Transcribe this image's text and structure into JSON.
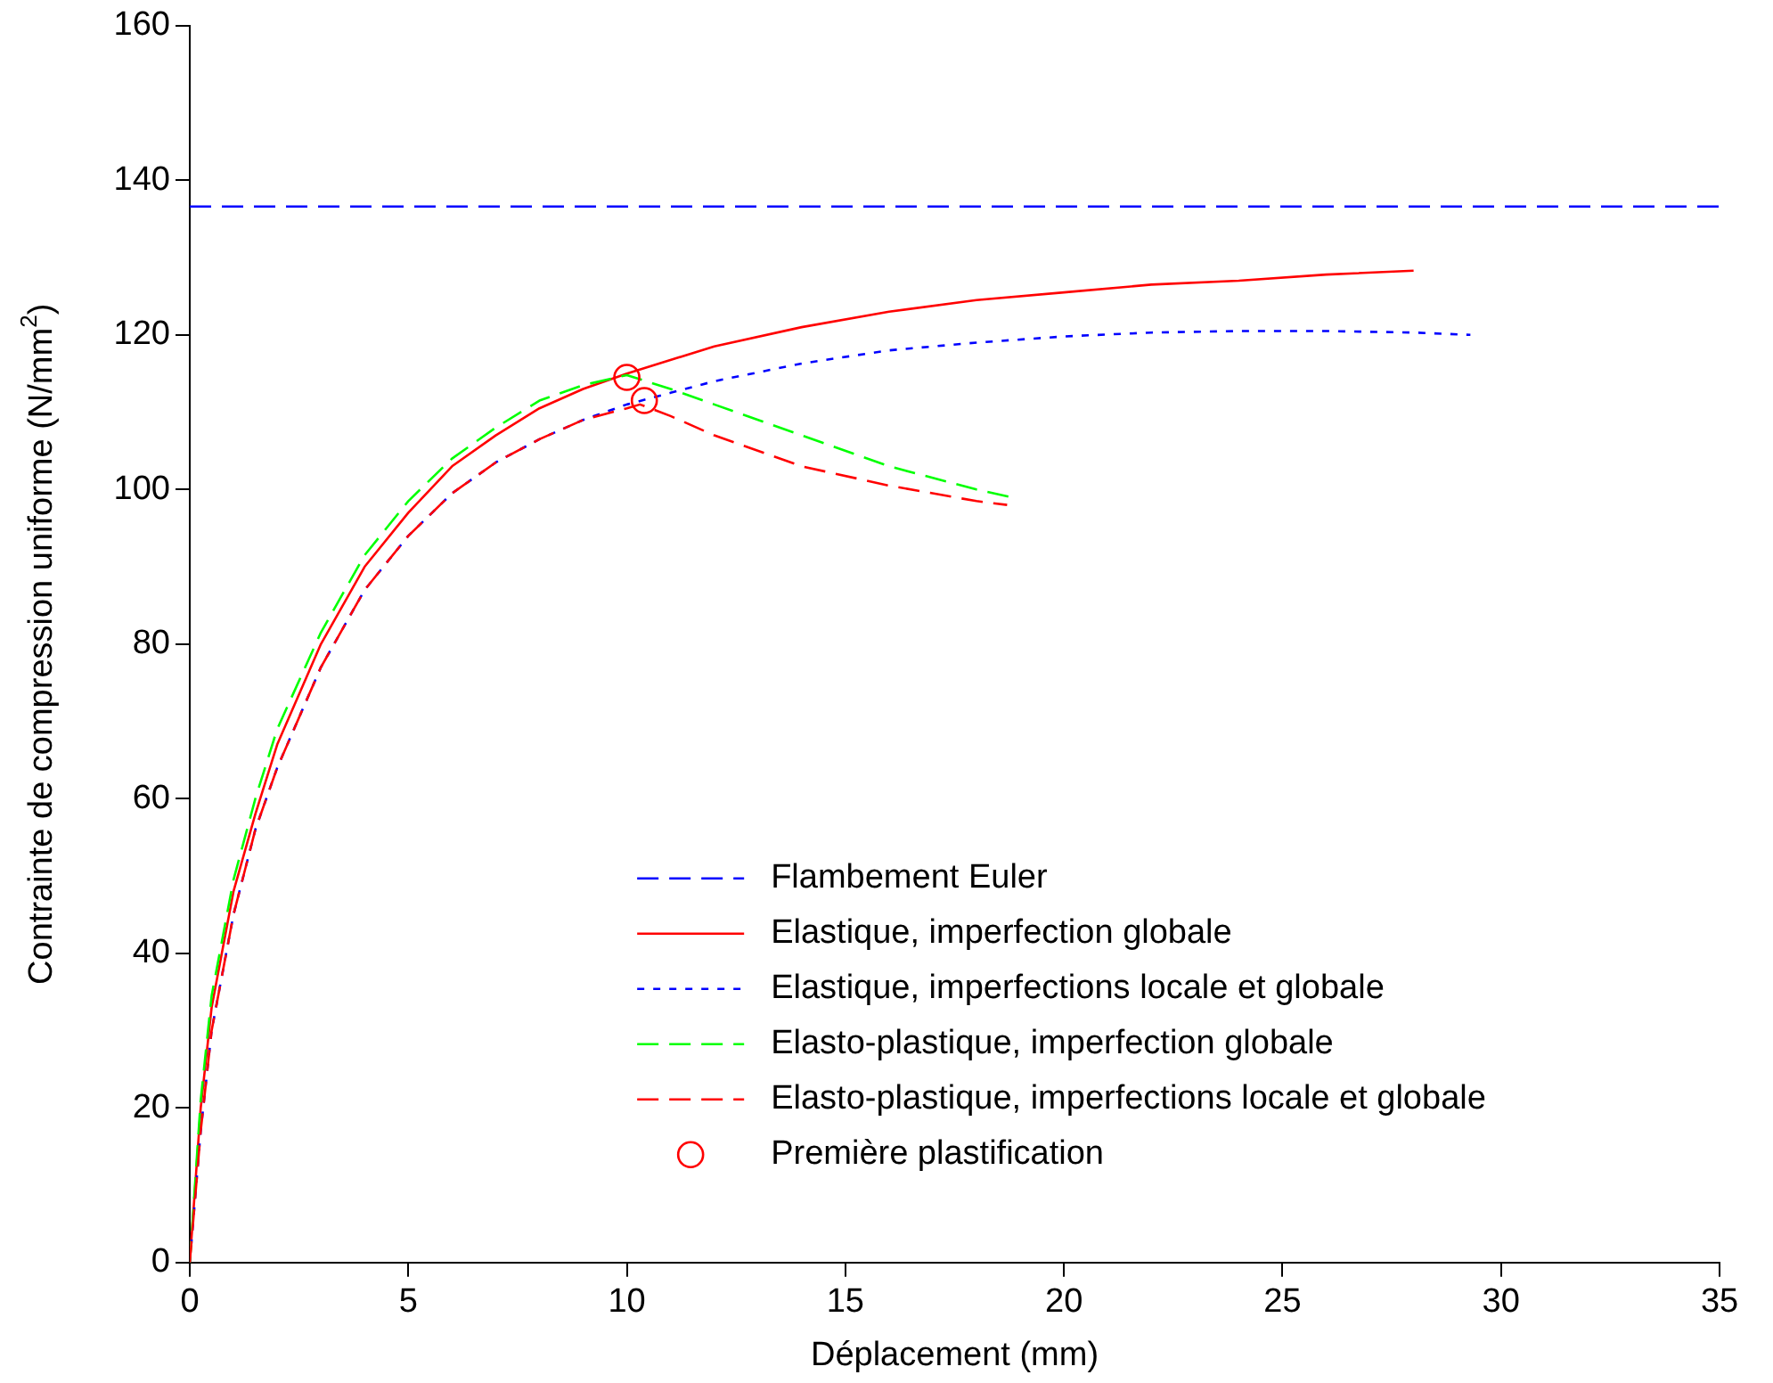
{
  "chart_data": {
    "type": "line",
    "xlabel": "Déplacement (mm)",
    "ylabel": "Contrainte de compression uniforme (N/mm$^{2}$)",
    "xlim": [
      0,
      35
    ],
    "ylim": [
      0,
      160
    ],
    "xticks": [
      0,
      5,
      10,
      15,
      20,
      25,
      30,
      35
    ],
    "yticks": [
      0,
      20,
      40,
      60,
      80,
      100,
      120,
      140,
      160
    ],
    "grid": false,
    "legend": "bottom",
    "marker": "none",
    "series": [
      {
        "name": "Flambement Euler",
        "color": "#0000ff",
        "line_style": "dashed",
        "x": [
          0,
          35
        ],
        "values": [
          136.6,
          136.6
        ]
      },
      {
        "name": "Elastique, imperfection globale",
        "color": "#ff0000",
        "line_style": "solid",
        "x": [
          0,
          0.25,
          0.5,
          1,
          1.5,
          2,
          3,
          4,
          5,
          6,
          7,
          8,
          9,
          10,
          12,
          14,
          16,
          18,
          20,
          22,
          24,
          26,
          28
        ],
        "values": [
          0,
          20,
          33,
          48,
          58,
          67,
          80,
          90,
          97,
          103,
          107,
          110.5,
          113,
          115,
          118.5,
          121,
          123,
          124.5,
          125.5,
          126.5,
          127,
          127.8,
          128.3
        ]
      },
      {
        "name": "Elastique, imperfections locale et globale",
        "color": "#0000ff",
        "line_style": "dotted",
        "x": [
          0,
          0.25,
          0.5,
          1,
          1.5,
          2,
          3,
          4,
          5,
          6,
          7,
          8,
          9,
          10,
          11,
          12,
          14,
          16,
          18,
          20,
          22,
          24,
          26,
          28,
          29.3
        ],
        "values": [
          0,
          17,
          30,
          45,
          56,
          64,
          77,
          87,
          94,
          99.5,
          103.5,
          106.5,
          109,
          111,
          112.5,
          114,
          116.3,
          118,
          119,
          119.8,
          120.3,
          120.5,
          120.5,
          120.3,
          120
        ]
      },
      {
        "name": "Elasto-plastique, imperfection globale",
        "color": "#00ff00",
        "line_style": "dashed",
        "x": [
          0,
          0.25,
          0.5,
          1,
          1.5,
          2,
          3,
          4,
          5,
          6,
          7,
          8,
          9,
          10,
          11,
          12,
          14,
          16,
          18,
          18.8
        ],
        "values": [
          0,
          21,
          34.5,
          49.5,
          60,
          69,
          81.5,
          91.5,
          98.5,
          104,
          108,
          111.5,
          113.5,
          114.8,
          113,
          111,
          107,
          103,
          100,
          99
        ]
      },
      {
        "name": "Elasto-plastique, imperfections locale et globale",
        "color": "#ff0000",
        "line_style": "dashed",
        "x": [
          0,
          0.25,
          0.5,
          1,
          1.5,
          2,
          3,
          4,
          5,
          6,
          7,
          8,
          9,
          10,
          10.3,
          11,
          12,
          14,
          16,
          18,
          18.7
        ],
        "values": [
          0,
          17,
          30,
          45,
          56,
          64,
          77,
          87,
          94,
          99.5,
          103.5,
          106.5,
          109,
          110.5,
          111,
          109.5,
          107,
          103,
          100.5,
          98.5,
          98
        ]
      },
      {
        "name": "Première plastification",
        "type": "scatter",
        "marker": "circle",
        "color": "#ff0000",
        "x": [
          10,
          10.4
        ],
        "values": [
          114.5,
          111.5
        ]
      }
    ]
  }
}
